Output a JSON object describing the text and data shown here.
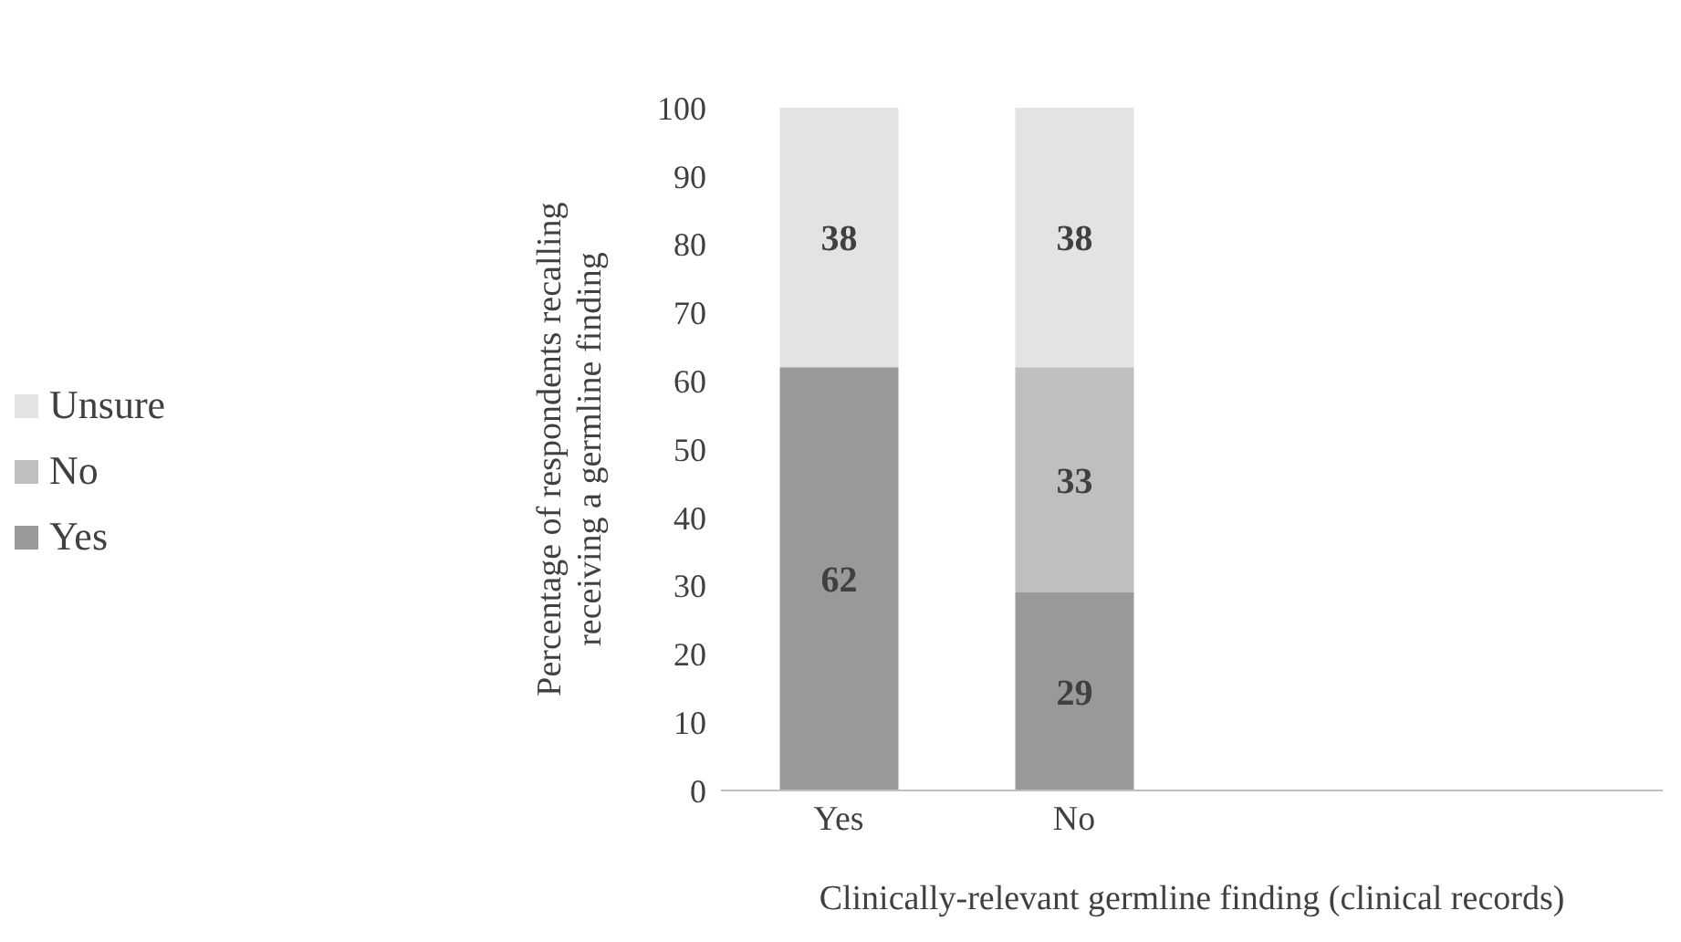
{
  "chart_data": {
    "type": "bar",
    "stacked": true,
    "xlabel": "Clinically-relevant germline finding (clinical records)",
    "ylabel": "Percentage of respondents recalling receiving a germline finding",
    "categories": [
      "Yes",
      "No",
      null,
      null
    ],
    "series": [
      {
        "name": "Yes",
        "color": "#999999",
        "values": [
          62,
          29,
          null,
          null
        ]
      },
      {
        "name": "No",
        "color": "#bfbfbf",
        "values": [
          null,
          33,
          null,
          null
        ]
      },
      {
        "name": "Unsure",
        "color": "#e3e3e3",
        "values": [
          38,
          38,
          null,
          null
        ]
      }
    ],
    "ylim": [
      0,
      100
    ],
    "yticks": [
      0,
      10,
      20,
      30,
      40,
      50,
      60,
      70,
      80,
      90,
      100
    ],
    "data_labels": true,
    "legend": "left",
    "grid": false
  }
}
